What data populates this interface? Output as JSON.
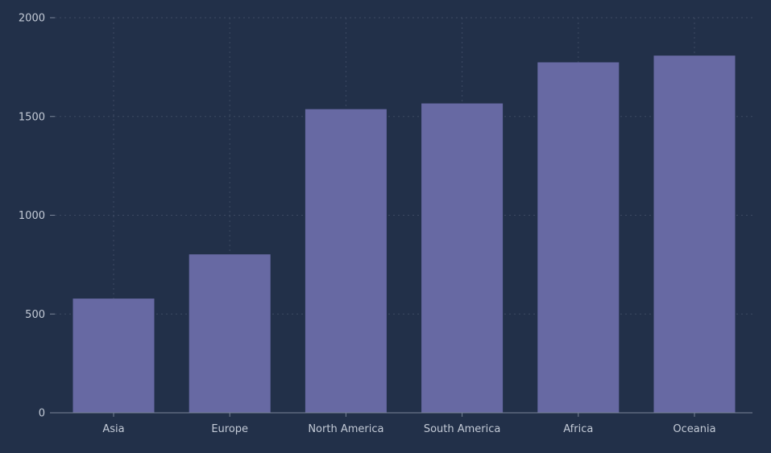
{
  "chart_data": {
    "type": "bar",
    "title": "",
    "xlabel": "",
    "ylabel": "",
    "categories": [
      "Asia",
      "Europe",
      "North America",
      "South America",
      "Africa",
      "Oceania"
    ],
    "values": [
      578,
      802,
      1537,
      1566,
      1774,
      1808
    ],
    "ylim": [
      0,
      2000
    ],
    "yticks": [
      0,
      500,
      1000,
      1500,
      2000
    ],
    "grid": true,
    "legend": "none"
  },
  "colors": {
    "background": "#223049",
    "bar": "#6769a3",
    "grid": "#3d4a63",
    "axis": "#7a8599",
    "text": "#c3cad6"
  }
}
